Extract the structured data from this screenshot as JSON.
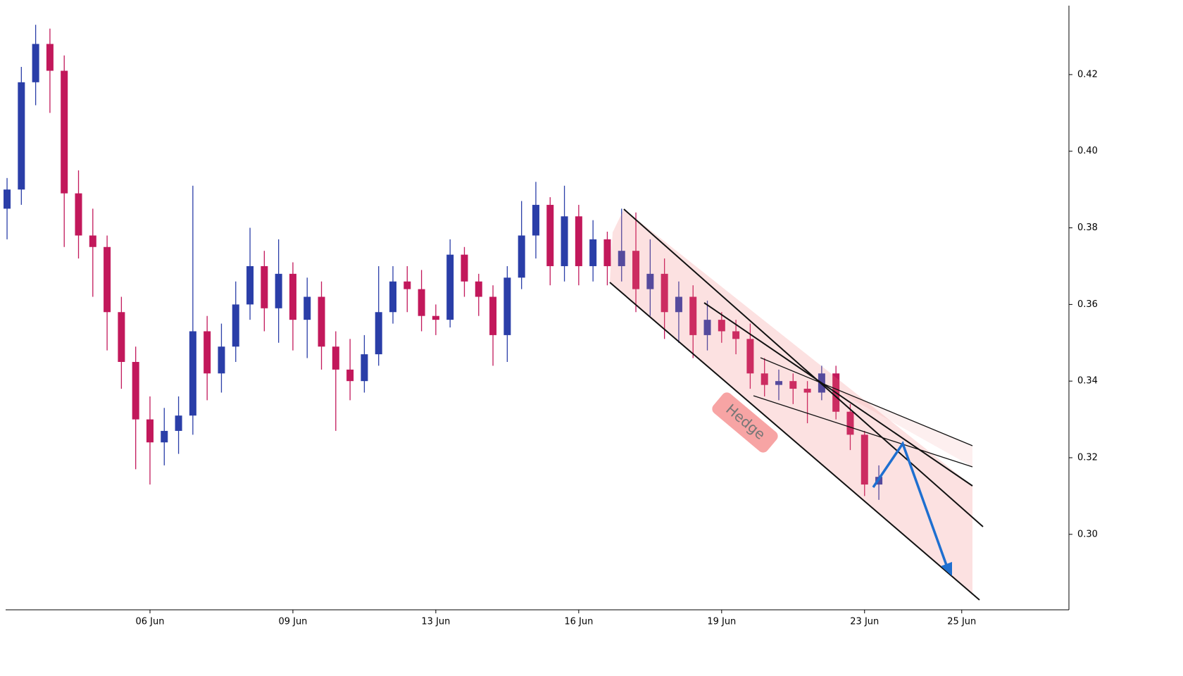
{
  "chart_data": {
    "type": "candlestick",
    "x": [
      0,
      1,
      2,
      3,
      4,
      5,
      6,
      7,
      8,
      9,
      10,
      11,
      12,
      13,
      14,
      15,
      16,
      17,
      18,
      19,
      20,
      21,
      22,
      23,
      24,
      25,
      26,
      27,
      28,
      29,
      30,
      31,
      32,
      33,
      34,
      35,
      36,
      37,
      38,
      39,
      40,
      41,
      42,
      43,
      44,
      45,
      46,
      47,
      48,
      49,
      50,
      51,
      52,
      53,
      54,
      55,
      56,
      57,
      58,
      59,
      60,
      61
    ],
    "ohlc": [
      [
        0.385,
        0.393,
        0.377,
        0.39
      ],
      [
        0.39,
        0.422,
        0.386,
        0.418
      ],
      [
        0.418,
        0.433,
        0.412,
        0.428
      ],
      [
        0.428,
        0.432,
        0.41,
        0.421
      ],
      [
        0.421,
        0.425,
        0.375,
        0.389
      ],
      [
        0.389,
        0.395,
        0.372,
        0.378
      ],
      [
        0.378,
        0.385,
        0.362,
        0.375
      ],
      [
        0.375,
        0.378,
        0.348,
        0.358
      ],
      [
        0.358,
        0.362,
        0.338,
        0.345
      ],
      [
        0.345,
        0.349,
        0.317,
        0.33
      ],
      [
        0.33,
        0.336,
        0.313,
        0.324
      ],
      [
        0.324,
        0.333,
        0.318,
        0.327
      ],
      [
        0.327,
        0.336,
        0.321,
        0.331
      ],
      [
        0.331,
        0.391,
        0.326,
        0.353
      ],
      [
        0.353,
        0.357,
        0.335,
        0.342
      ],
      [
        0.342,
        0.355,
        0.337,
        0.349
      ],
      [
        0.349,
        0.366,
        0.345,
        0.36
      ],
      [
        0.36,
        0.38,
        0.356,
        0.37
      ],
      [
        0.37,
        0.374,
        0.353,
        0.359
      ],
      [
        0.359,
        0.377,
        0.35,
        0.368
      ],
      [
        0.368,
        0.371,
        0.348,
        0.356
      ],
      [
        0.356,
        0.367,
        0.346,
        0.362
      ],
      [
        0.362,
        0.366,
        0.343,
        0.349
      ],
      [
        0.349,
        0.353,
        0.327,
        0.343
      ],
      [
        0.343,
        0.351,
        0.335,
        0.34
      ],
      [
        0.34,
        0.352,
        0.337,
        0.347
      ],
      [
        0.347,
        0.37,
        0.344,
        0.358
      ],
      [
        0.358,
        0.37,
        0.355,
        0.366
      ],
      [
        0.366,
        0.37,
        0.358,
        0.364
      ],
      [
        0.364,
        0.369,
        0.353,
        0.357
      ],
      [
        0.357,
        0.36,
        0.352,
        0.356
      ],
      [
        0.356,
        0.377,
        0.354,
        0.373
      ],
      [
        0.373,
        0.375,
        0.362,
        0.366
      ],
      [
        0.366,
        0.368,
        0.357,
        0.362
      ],
      [
        0.362,
        0.365,
        0.344,
        0.352
      ],
      [
        0.352,
        0.37,
        0.345,
        0.367
      ],
      [
        0.367,
        0.387,
        0.364,
        0.378
      ],
      [
        0.378,
        0.392,
        0.372,
        0.386
      ],
      [
        0.386,
        0.388,
        0.365,
        0.37
      ],
      [
        0.37,
        0.391,
        0.366,
        0.383
      ],
      [
        0.383,
        0.386,
        0.365,
        0.37
      ],
      [
        0.37,
        0.382,
        0.366,
        0.377
      ],
      [
        0.377,
        0.379,
        0.365,
        0.37
      ],
      [
        0.37,
        0.385,
        0.366,
        0.374
      ],
      [
        0.374,
        0.384,
        0.358,
        0.364
      ],
      [
        0.364,
        0.377,
        0.357,
        0.368
      ],
      [
        0.368,
        0.372,
        0.351,
        0.358
      ],
      [
        0.358,
        0.366,
        0.35,
        0.362
      ],
      [
        0.362,
        0.365,
        0.346,
        0.352
      ],
      [
        0.352,
        0.361,
        0.348,
        0.356
      ],
      [
        0.356,
        0.358,
        0.35,
        0.353
      ],
      [
        0.353,
        0.356,
        0.347,
        0.351
      ],
      [
        0.351,
        0.355,
        0.338,
        0.342
      ],
      [
        0.342,
        0.346,
        0.336,
        0.339
      ],
      [
        0.339,
        0.343,
        0.335,
        0.34
      ],
      [
        0.34,
        0.342,
        0.334,
        0.338
      ],
      [
        0.338,
        0.34,
        0.329,
        0.337
      ],
      [
        0.337,
        0.344,
        0.335,
        0.342
      ],
      [
        0.342,
        0.344,
        0.33,
        0.332
      ],
      [
        0.332,
        0.334,
        0.322,
        0.326
      ],
      [
        0.326,
        0.327,
        0.31,
        0.313
      ],
      [
        0.313,
        0.318,
        0.309,
        0.315
      ]
    ],
    "up_color": "#2a3ea8",
    "down_color": "#c2185b",
    "xlim": [
      -0.1,
      74.3
    ],
    "ylim": [
      0.2803,
      0.438
    ],
    "xticks": [
      {
        "value": 10,
        "label": "06 Jun"
      },
      {
        "value": 20,
        "label": "09 Jun"
      },
      {
        "value": 30,
        "label": "13 Jun"
      },
      {
        "value": 40,
        "label": "16 Jun"
      },
      {
        "value": 50,
        "label": "19 Jun"
      },
      {
        "value": 60,
        "label": "23 Jun"
      },
      {
        "value": 66.8,
        "label": "25 Jun"
      }
    ],
    "yticks": [
      {
        "value": 0.3,
        "label": "0.30"
      },
      0.32,
      0.34,
      0.36,
      0.38,
      {
        "value": 0.4,
        "label": "0.40"
      },
      0.42
    ],
    "annotation": "Hedge"
  }
}
